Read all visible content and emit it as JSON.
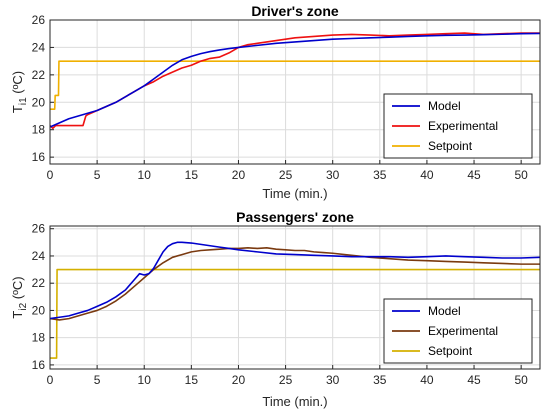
{
  "chart_data": [
    {
      "type": "line",
      "title": "Driver's zone",
      "xlabel": "Time (min.)",
      "ylabel_main": "T",
      "ylabel_sub": "i1",
      "ylabel_unit": " (ºC)",
      "xlim": [
        0,
        52
      ],
      "ylim": [
        15.5,
        26
      ],
      "xticks": [
        0,
        5,
        10,
        15,
        20,
        25,
        30,
        35,
        40,
        45,
        50
      ],
      "yticks": [
        16,
        18,
        20,
        22,
        24,
        26
      ],
      "grid": true,
      "legend_position": "lower-right",
      "series": [
        {
          "name": "Model",
          "color": "#0000cc",
          "x": [
            0,
            1,
            2,
            3,
            4,
            5,
            6,
            7,
            8,
            9,
            10,
            11,
            12,
            13,
            14,
            15,
            16,
            17,
            18,
            19,
            20,
            22,
            24,
            26,
            28,
            30,
            32,
            34,
            36,
            38,
            40,
            42,
            44,
            46,
            48,
            50,
            52
          ],
          "y": [
            18.2,
            18.5,
            18.8,
            19.0,
            19.2,
            19.4,
            19.7,
            20.0,
            20.4,
            20.8,
            21.2,
            21.7,
            22.2,
            22.7,
            23.1,
            23.35,
            23.55,
            23.7,
            23.82,
            23.92,
            24.0,
            24.15,
            24.3,
            24.4,
            24.5,
            24.6,
            24.65,
            24.7,
            24.75,
            24.8,
            24.85,
            24.88,
            24.9,
            24.93,
            24.96,
            25.0,
            25.02
          ]
        },
        {
          "name": "Experimental",
          "color": "#ee1111",
          "x": [
            0,
            0.3,
            0.6,
            1,
            2,
            3,
            3.5,
            3.8,
            4,
            5,
            6,
            7,
            8,
            9,
            10,
            11,
            12,
            13,
            14,
            15,
            16,
            17,
            18,
            19,
            20,
            21,
            22,
            24,
            26,
            28,
            30,
            32,
            34,
            36,
            38,
            40,
            42,
            44,
            46,
            48,
            50,
            52
          ],
          "y": [
            18.3,
            18.1,
            18.3,
            18.3,
            18.3,
            18.3,
            18.3,
            19.0,
            19.1,
            19.4,
            19.7,
            20.0,
            20.4,
            20.8,
            21.2,
            21.5,
            21.9,
            22.2,
            22.5,
            22.7,
            23.0,
            23.2,
            23.3,
            23.6,
            24.0,
            24.2,
            24.3,
            24.5,
            24.7,
            24.8,
            24.9,
            24.95,
            24.9,
            24.85,
            24.9,
            24.95,
            25.0,
            25.05,
            24.95,
            25.0,
            25.05,
            25.05
          ]
        },
        {
          "name": "Setpoint",
          "color": "#f0b000",
          "x": [
            0,
            0.5,
            0.55,
            0.9,
            0.95,
            52
          ],
          "y": [
            19.5,
            19.5,
            20.5,
            20.5,
            23.0,
            23.0
          ]
        }
      ]
    },
    {
      "type": "line",
      "title": "Passengers' zone",
      "xlabel": "Time (min.)",
      "ylabel_main": "T",
      "ylabel_sub": "i2",
      "ylabel_unit": " (ºC)",
      "xlim": [
        0,
        52
      ],
      "ylim": [
        15.7,
        26.2
      ],
      "xticks": [
        0,
        5,
        10,
        15,
        20,
        25,
        30,
        35,
        40,
        45,
        50
      ],
      "yticks": [
        16,
        18,
        20,
        22,
        24,
        26
      ],
      "grid": true,
      "legend_position": "lower-right",
      "series": [
        {
          "name": "Model",
          "color": "#0000cc",
          "x": [
            0,
            1,
            2,
            3,
            4,
            5,
            6,
            7,
            8,
            9,
            9.5,
            10,
            10.5,
            11,
            11.5,
            12,
            12.5,
            13,
            13.5,
            14,
            15,
            16,
            17,
            18,
            19,
            20,
            22,
            24,
            26,
            28,
            30,
            32,
            34,
            36,
            38,
            40,
            42,
            44,
            46,
            48,
            50,
            52
          ],
          "y": [
            19.4,
            19.5,
            19.6,
            19.8,
            20.0,
            20.3,
            20.6,
            21.0,
            21.5,
            22.3,
            22.7,
            22.6,
            22.7,
            23.1,
            23.7,
            24.3,
            24.7,
            24.9,
            25.0,
            25.0,
            24.95,
            24.85,
            24.75,
            24.65,
            24.55,
            24.45,
            24.3,
            24.15,
            24.1,
            24.05,
            24.0,
            23.95,
            23.95,
            23.95,
            23.9,
            23.95,
            24.0,
            23.95,
            23.9,
            23.85,
            23.85,
            23.9
          ]
        },
        {
          "name": "Experimental",
          "color": "#7a3a10",
          "x": [
            0,
            1,
            2,
            3,
            4,
            5,
            6,
            7,
            8,
            9,
            10,
            11,
            12,
            13,
            14,
            15,
            16,
            17,
            18,
            19,
            20,
            21,
            22,
            23,
            24,
            25,
            26,
            27,
            28,
            29,
            30,
            32,
            34,
            36,
            38,
            40,
            42,
            44,
            46,
            48,
            50,
            52
          ],
          "y": [
            19.4,
            19.3,
            19.4,
            19.6,
            19.8,
            20.0,
            20.3,
            20.7,
            21.2,
            21.8,
            22.4,
            23.0,
            23.5,
            23.9,
            24.1,
            24.3,
            24.4,
            24.45,
            24.5,
            24.55,
            24.55,
            24.6,
            24.55,
            24.6,
            24.5,
            24.45,
            24.4,
            24.4,
            24.3,
            24.25,
            24.2,
            24.05,
            23.9,
            23.8,
            23.7,
            23.65,
            23.6,
            23.55,
            23.5,
            23.45,
            23.4,
            23.4
          ]
        },
        {
          "name": "Setpoint",
          "color": "#d4b000",
          "x": [
            0,
            0.7,
            0.75,
            52
          ],
          "y": [
            16.5,
            16.5,
            23.0,
            23.0
          ]
        }
      ]
    }
  ]
}
